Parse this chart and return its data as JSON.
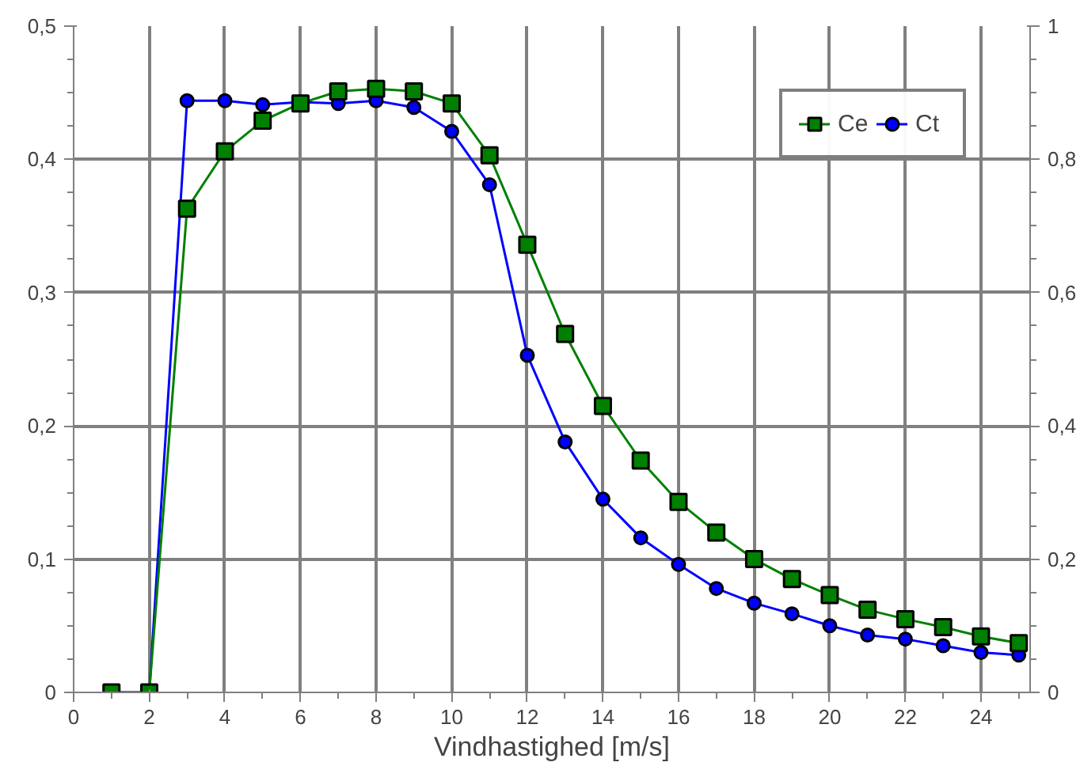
{
  "chart_data": {
    "type": "line",
    "xlabel": "Vindhastighed [m/s]",
    "x": [
      1,
      2,
      3,
      4,
      5,
      6,
      7,
      8,
      9,
      10,
      11,
      12,
      13,
      14,
      15,
      16,
      17,
      18,
      19,
      20,
      21,
      22,
      23,
      24,
      25
    ],
    "series": [
      {
        "name": "Ce",
        "color": "#008000",
        "marker": "square",
        "values": [
          0,
          0,
          0.363,
          0.406,
          0.429,
          0.442,
          0.451,
          0.453,
          0.451,
          0.442,
          0.403,
          0.336,
          0.269,
          0.215,
          0.174,
          0.143,
          0.12,
          0.1,
          0.085,
          0.073,
          0.062,
          0.055,
          0.049,
          0.042,
          0.037
        ]
      },
      {
        "name": "Ct",
        "color": "#0000ff",
        "marker": "circle",
        "axis": "y2",
        "values": [
          0,
          0,
          0.888,
          0.888,
          0.882,
          0.886,
          0.884,
          0.888,
          0.878,
          0.842,
          0.762,
          0.506,
          0.376,
          0.29,
          0.232,
          0.192,
          0.156,
          0.134,
          0.118,
          0.1,
          0.086,
          0.08,
          0.07,
          0.06,
          0.056
        ]
      }
    ],
    "xlim": [
      0,
      25.3
    ],
    "xticks": [
      0,
      2,
      4,
      6,
      8,
      10,
      12,
      14,
      16,
      18,
      20,
      22,
      24
    ],
    "ylim": [
      0,
      0.5
    ],
    "yticks": [
      0,
      {
        "value": 0.1,
        "label": "0,1"
      },
      {
        "value": 0.2,
        "label": "0,2"
      },
      {
        "value": 0.3,
        "label": "0,3"
      },
      {
        "value": 0.4,
        "label": "0,4"
      },
      {
        "value": 0.5,
        "label": "0,5"
      }
    ],
    "y2lim": [
      0,
      1
    ],
    "y2ticks": [
      0,
      {
        "value": 0.2,
        "label": "0,2"
      },
      {
        "value": 0.4,
        "label": "0,4"
      },
      {
        "value": 0.6,
        "label": "0,6"
      },
      {
        "value": 0.8,
        "label": "0,8"
      },
      1
    ],
    "grid": true,
    "legend": "top right",
    "line_style": "solid"
  }
}
